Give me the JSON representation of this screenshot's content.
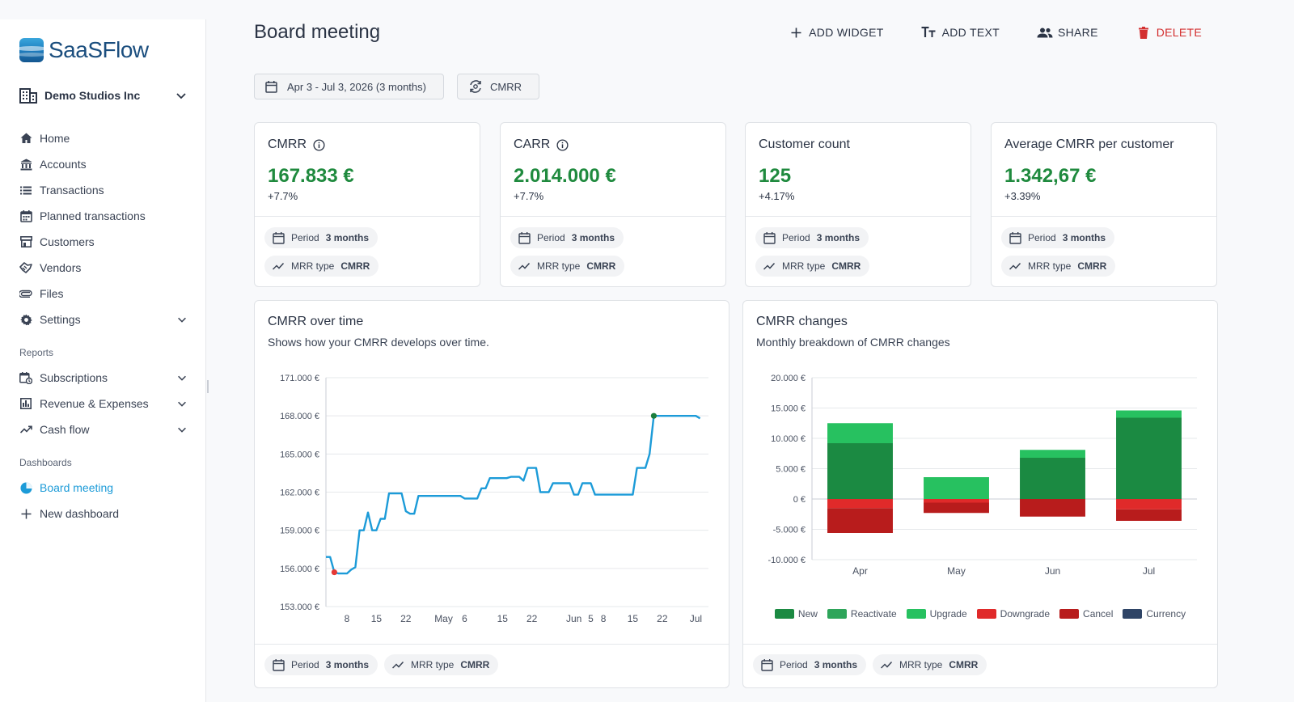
{
  "app": {
    "name": "SaaSFlow"
  },
  "company": {
    "name": "Demo Studios Inc"
  },
  "nav": [
    {
      "label": "Home",
      "icon": "home-icon"
    },
    {
      "label": "Accounts",
      "icon": "bank-icon"
    },
    {
      "label": "Transactions",
      "icon": "list-icon"
    },
    {
      "label": "Planned transactions",
      "icon": "calendar-icon"
    },
    {
      "label": "Customers",
      "icon": "store-icon"
    },
    {
      "label": "Vendors",
      "icon": "handshake-icon"
    },
    {
      "label": "Files",
      "icon": "attachment-icon"
    },
    {
      "label": "Settings",
      "icon": "gear-icon"
    }
  ],
  "reports": {
    "heading": "Reports",
    "items": [
      {
        "label": "Subscriptions",
        "icon": "calendar-sync-icon"
      },
      {
        "label": "Revenue & Expenses",
        "icon": "bar-chart-icon"
      },
      {
        "label": "Cash flow",
        "icon": "trending-up-icon"
      }
    ]
  },
  "dashboards": {
    "heading": "Dashboards",
    "items": [
      {
        "label": "Board meeting",
        "icon": "pie-chart-icon",
        "active": true
      },
      {
        "label": "New dashboard",
        "icon": "plus-icon"
      }
    ]
  },
  "page": {
    "title": "Board meeting"
  },
  "actions": {
    "add_widget": "ADD WIDGET",
    "add_text": "ADD TEXT",
    "share": "SHARE",
    "delete": "DELETE"
  },
  "filters": {
    "period": "Apr 3 - Jul 3, 2026 (3 months)",
    "mrr_type": "CMRR"
  },
  "chip_labels": {
    "period": "Period",
    "period_value": "3 months",
    "mrr_type": "MRR type",
    "mrr_type_value": "CMRR"
  },
  "kpis": [
    {
      "title": "CMRR",
      "value": "167.833 €",
      "delta": "+7.7%",
      "info": true
    },
    {
      "title": "CARR",
      "value": "2.014.000 €",
      "delta": "+7.7%",
      "info": true
    },
    {
      "title": "Customer count",
      "value": "125",
      "delta": "+4.17%",
      "info": false
    },
    {
      "title": "Average CMRR per customer",
      "value": "1.342,67 €",
      "delta": "+3.39%",
      "info": false
    }
  ],
  "colors": {
    "accent": "#1c9bd8",
    "positive": "#1f8a3e",
    "danger": "#d32f2f"
  },
  "chart_data": [
    {
      "type": "line",
      "title": "CMRR over time",
      "subtitle": "Shows how your CMRR develops over time.",
      "ylim": [
        153000,
        171000
      ],
      "ytick_labels": [
        "171.000 €",
        "168.000 €",
        "165.000 €",
        "162.000 €",
        "159.000 €",
        "156.000 €",
        "153.000 €"
      ],
      "ytick_values": [
        171000,
        168000,
        165000,
        162000,
        159000,
        156000,
        153000
      ],
      "xlim": [
        0,
        91
      ],
      "xtick_labels": [
        "8",
        "15",
        "22",
        "May",
        "6",
        "15",
        "22",
        "Jun",
        "5",
        "8",
        "15",
        "22",
        "Jul"
      ],
      "xtick_positions": [
        5,
        12,
        19,
        28,
        33,
        42,
        49,
        59,
        63,
        66,
        73,
        80,
        88
      ],
      "grid": true,
      "series": [
        {
          "color": "#1c9bd8",
          "points": [
            [
              0,
              156900
            ],
            [
              1,
              156900
            ],
            [
              2,
              155700
            ],
            [
              3,
              155600
            ],
            [
              4,
              155600
            ],
            [
              5,
              155600
            ],
            [
              6,
              155900
            ],
            [
              7,
              156100
            ],
            [
              8,
              159000
            ],
            [
              9,
              159000
            ],
            [
              10,
              160400
            ],
            [
              11,
              159000
            ],
            [
              12,
              159000
            ],
            [
              13,
              159900
            ],
            [
              14,
              159900
            ],
            [
              15,
              161900
            ],
            [
              16,
              161900
            ],
            [
              17,
              161900
            ],
            [
              18,
              161900
            ],
            [
              19,
              160500
            ],
            [
              20,
              160300
            ],
            [
              21,
              160300
            ],
            [
              22,
              161700
            ],
            [
              23,
              161700
            ],
            [
              24,
              161700
            ],
            [
              25,
              161700
            ],
            [
              26,
              161700
            ],
            [
              27,
              161700
            ],
            [
              28,
              161700
            ],
            [
              29,
              161700
            ],
            [
              30,
              161700
            ],
            [
              31,
              161700
            ],
            [
              32,
              161700
            ],
            [
              33,
              161500
            ],
            [
              34,
              161500
            ],
            [
              35,
              161500
            ],
            [
              36,
              161500
            ],
            [
              37,
              162300
            ],
            [
              38,
              162300
            ],
            [
              39,
              163100
            ],
            [
              40,
              163100
            ],
            [
              41,
              163100
            ],
            [
              42,
              163100
            ],
            [
              43,
              163100
            ],
            [
              44,
              163200
            ],
            [
              45,
              163200
            ],
            [
              46,
              163200
            ],
            [
              47,
              162900
            ],
            [
              48,
              163900
            ],
            [
              49,
              163900
            ],
            [
              50,
              163900
            ],
            [
              51,
              162000
            ],
            [
              52,
              162000
            ],
            [
              53,
              162000
            ],
            [
              54,
              162700
            ],
            [
              55,
              162700
            ],
            [
              56,
              162700
            ],
            [
              57,
              162700
            ],
            [
              58,
              162700
            ],
            [
              59,
              161800
            ],
            [
              60,
              161800
            ],
            [
              61,
              162700
            ],
            [
              62,
              162700
            ],
            [
              63,
              162700
            ],
            [
              64,
              161800
            ],
            [
              65,
              161800
            ],
            [
              66,
              161800
            ],
            [
              67,
              161800
            ],
            [
              68,
              161800
            ],
            [
              69,
              161800
            ],
            [
              70,
              161800
            ],
            [
              71,
              161800
            ],
            [
              72,
              161800
            ],
            [
              73,
              161800
            ],
            [
              74,
              163900
            ],
            [
              75,
              163900
            ],
            [
              76,
              163900
            ],
            [
              77,
              165000
            ],
            [
              78,
              168000
            ],
            [
              79,
              168000
            ],
            [
              80,
              168000
            ],
            [
              81,
              168000
            ],
            [
              82,
              168000
            ],
            [
              83,
              168000
            ],
            [
              84,
              168000
            ],
            [
              85,
              168000
            ],
            [
              86,
              168000
            ],
            [
              87,
              168000
            ],
            [
              88,
              168000
            ],
            [
              89,
              167800
            ]
          ],
          "markers": [
            {
              "x": 2,
              "y": 155700,
              "color": "#e53935"
            },
            {
              "x": 78,
              "y": 168000,
              "color": "#1b7e3c"
            }
          ]
        }
      ]
    },
    {
      "type": "bar",
      "stacked": true,
      "title": "CMRR changes",
      "subtitle": "Monthly breakdown of CMRR changes",
      "categories": [
        "Apr",
        "May",
        "Jun",
        "Jul"
      ],
      "ylim": [
        -10000,
        20000
      ],
      "ytick_labels": [
        "20.000 €",
        "15.000 €",
        "10.000 €",
        "5.000 €",
        "0 €",
        "-5.000 €",
        "-10.000 €"
      ],
      "ytick_values": [
        20000,
        15000,
        10000,
        5000,
        0,
        -5000,
        -10000
      ],
      "grid": true,
      "legend_position": "bottom",
      "series": [
        {
          "name": "New",
          "color": "#1b8a42",
          "values": [
            9200,
            0,
            6800,
            13400
          ]
        },
        {
          "name": "Reactivate",
          "color": "#2ea55a",
          "values": [
            0,
            0,
            0,
            0
          ]
        },
        {
          "name": "Upgrade",
          "color": "#27c160",
          "values": [
            3300,
            3600,
            1300,
            1200
          ]
        },
        {
          "name": "Downgrade",
          "color": "#e02a2a",
          "values": [
            -1500,
            -600,
            0,
            -1700
          ]
        },
        {
          "name": "Cancel",
          "color": "#b81c1c",
          "values": [
            -4100,
            -1700,
            -2900,
            -1900
          ]
        },
        {
          "name": "Currency",
          "color": "#2e4466",
          "values": [
            0,
            0,
            0,
            0
          ]
        }
      ]
    }
  ]
}
